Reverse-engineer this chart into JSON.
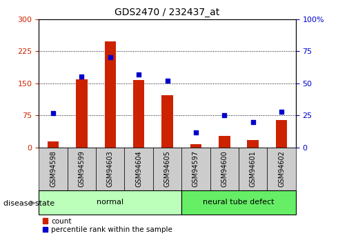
{
  "title": "GDS2470 / 232437_at",
  "samples": [
    "GSM94598",
    "GSM94599",
    "GSM94603",
    "GSM94604",
    "GSM94605",
    "GSM94597",
    "GSM94600",
    "GSM94601",
    "GSM94602"
  ],
  "counts": [
    15,
    160,
    248,
    158,
    122,
    8,
    28,
    18,
    65
  ],
  "percentiles": [
    27,
    55,
    70,
    57,
    52,
    12,
    25,
    20,
    28
  ],
  "groups": [
    "normal",
    "normal",
    "normal",
    "normal",
    "normal",
    "neural tube defect",
    "neural tube defect",
    "neural tube defect",
    "neural tube defect"
  ],
  "group_colors": {
    "normal": "#bbffbb",
    "neural tube defect": "#66ee66"
  },
  "bar_color": "#cc2200",
  "dot_color": "#0000cc",
  "left_ylim": [
    0,
    300
  ],
  "right_ylim": [
    0,
    100
  ],
  "left_yticks": [
    0,
    75,
    150,
    225,
    300
  ],
  "right_yticks": [
    0,
    25,
    50,
    75,
    100
  ],
  "left_tick_color": "#cc2200",
  "right_tick_color": "#0000cc",
  "grid_color": "black",
  "tick_label_bg": "#cccccc",
  "label_count": "count",
  "label_percentile": "percentile rank within the sample"
}
